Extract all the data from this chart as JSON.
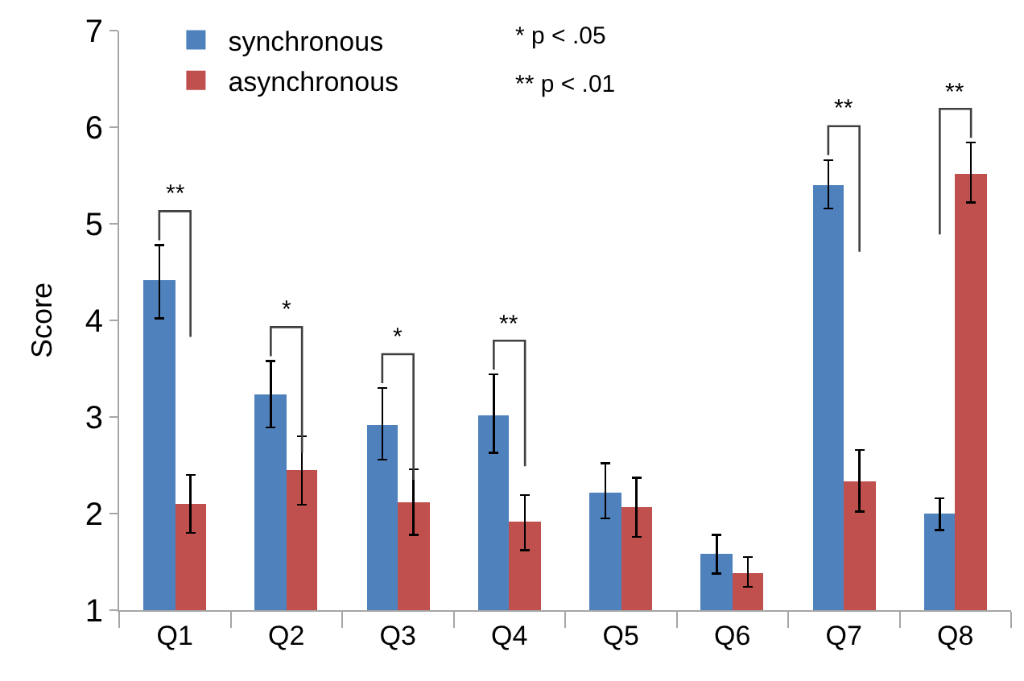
{
  "chart_data": {
    "type": "bar",
    "ylabel": "Score",
    "categories": [
      "Q1",
      "Q2",
      "Q3",
      "Q4",
      "Q5",
      "Q6",
      "Q7",
      "Q8"
    ],
    "series": [
      {
        "name": "synchronous",
        "color": "#4f81bd",
        "values": [
          4.41,
          3.23,
          2.92,
          3.02,
          2.22,
          1.58,
          5.4,
          2.0
        ],
        "errors": [
          [
            4.02,
            4.78
          ],
          [
            2.89,
            3.58
          ],
          [
            2.56,
            3.3
          ],
          [
            2.63,
            3.44
          ],
          [
            1.95,
            2.52
          ],
          [
            1.38,
            1.78
          ],
          [
            5.16,
            5.66
          ],
          [
            1.83,
            2.16
          ]
        ]
      },
      {
        "name": "asynchronous",
        "color": "#c0504d",
        "values": [
          2.1,
          2.45,
          2.12,
          1.91,
          2.07,
          1.39,
          2.33,
          5.52
        ],
        "errors": [
          [
            1.8,
            2.4
          ],
          [
            2.09,
            2.8
          ],
          [
            1.78,
            2.46
          ],
          [
            1.62,
            2.19
          ],
          [
            1.76,
            2.37
          ],
          [
            1.24,
            1.55
          ],
          [
            2.02,
            2.66
          ],
          [
            5.22,
            5.84
          ]
        ]
      }
    ],
    "annotations": [
      "**",
      "*",
      "*",
      "**",
      "**",
      "**",
      "* p < .05",
      "** p < .01"
    ],
    "ylim": [
      1,
      7
    ],
    "yticks": [
      1,
      2,
      3,
      4,
      5,
      6,
      7
    ],
    "legend": "top left"
  }
}
